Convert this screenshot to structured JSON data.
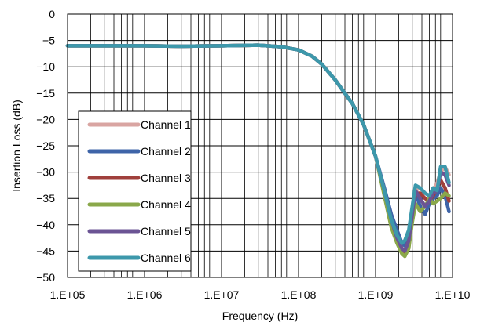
{
  "chart_data": {
    "type": "line",
    "x_scale": "log",
    "xlim": [
      100000,
      10000000000
    ],
    "ylim": [
      -50,
      0
    ],
    "xlabel": "Frequency (Hz)",
    "ylabel": "Insertion Loss (dB)",
    "x_ticks": [
      "1.E+05",
      "1.E+06",
      "1.E+07",
      "1.E+08",
      "1.E+09",
      "1.E+10"
    ],
    "y_ticks": [
      "0",
      "−5",
      "−10",
      "−15",
      "−20",
      "−25",
      "−30",
      "−35",
      "−40",
      "−45",
      "−50"
    ],
    "grid": true,
    "legend_position": "bottom-left",
    "series": [
      {
        "name": "Channel 1",
        "color": "#d9a5a2",
        "x": [
          100000,
          1000000,
          3000000,
          10000000,
          30000000,
          60000000,
          100000000,
          150000000,
          200000000,
          300000000,
          500000000,
          700000000,
          1000000000,
          1300000000,
          1600000000,
          1900000000,
          2200000000,
          2400000000,
          2700000000,
          3000000000,
          3300000000,
          3800000000,
          4400000000,
          5000000000,
          5600000000,
          6300000000,
          7000000000,
          8000000000,
          9000000000
        ],
        "y": [
          -6.0,
          -6.0,
          -6.1,
          -6.0,
          -5.9,
          -6.2,
          -6.8,
          -8.0,
          -9.5,
          -12.5,
          -17.0,
          -21.0,
          -27.0,
          -34.0,
          -39.5,
          -42.0,
          -44.5,
          -45.0,
          -43.5,
          -38.5,
          -33.5,
          -33.0,
          -34.0,
          -34.5,
          -33.5,
          -32.0,
          -30.0,
          -29.0,
          -30.5
        ]
      },
      {
        "name": "Channel 2",
        "color": "#3e64a8",
        "x": [
          100000,
          1000000,
          3000000,
          10000000,
          30000000,
          60000000,
          100000000,
          150000000,
          200000000,
          300000000,
          500000000,
          700000000,
          1000000000,
          1300000000,
          1600000000,
          1900000000,
          2200000000,
          2400000000,
          2700000000,
          3000000000,
          3300000000,
          3800000000,
          4400000000,
          5000000000,
          5600000000,
          6300000000,
          7000000000,
          8000000000,
          9000000000
        ],
        "y": [
          -6.0,
          -6.0,
          -6.1,
          -6.0,
          -5.9,
          -6.2,
          -6.8,
          -8.0,
          -9.5,
          -12.5,
          -17.0,
          -21.0,
          -27.0,
          -33.0,
          -38.0,
          -41.0,
          -43.5,
          -44.0,
          -42.0,
          -37.5,
          -34.0,
          -36.5,
          -38.0,
          -36.0,
          -35.0,
          -34.5,
          -33.0,
          -34.5,
          -37.5
        ]
      },
      {
        "name": "Channel 3",
        "color": "#a0403c",
        "x": [
          100000,
          1000000,
          3000000,
          10000000,
          30000000,
          60000000,
          100000000,
          150000000,
          200000000,
          300000000,
          500000000,
          700000000,
          1000000000,
          1300000000,
          1600000000,
          1900000000,
          2200000000,
          2400000000,
          2700000000,
          3000000000,
          3300000000,
          3800000000,
          4400000000,
          5000000000,
          5600000000,
          6300000000,
          7000000000,
          8000000000,
          9000000000
        ],
        "y": [
          -6.0,
          -6.0,
          -6.1,
          -6.0,
          -5.9,
          -6.2,
          -6.8,
          -8.0,
          -9.5,
          -12.5,
          -17.0,
          -21.0,
          -27.0,
          -34.0,
          -40.0,
          -43.0,
          -45.0,
          -45.5,
          -44.0,
          -39.0,
          -34.0,
          -34.0,
          -35.0,
          -35.5,
          -34.5,
          -33.0,
          -31.5,
          -33.0,
          -35.5
        ]
      },
      {
        "name": "Channel 4",
        "color": "#8aa84a",
        "x": [
          100000,
          1000000,
          3000000,
          10000000,
          30000000,
          60000000,
          100000000,
          150000000,
          200000000,
          300000000,
          500000000,
          700000000,
          1000000000,
          1300000000,
          1600000000,
          1900000000,
          2200000000,
          2400000000,
          2700000000,
          3000000000,
          3300000000,
          3800000000,
          4400000000,
          5000000000,
          5600000000,
          6300000000,
          7000000000,
          8000000000,
          9000000000
        ],
        "y": [
          -6.0,
          -6.0,
          -6.1,
          -6.0,
          -5.9,
          -6.2,
          -6.8,
          -8.0,
          -9.5,
          -12.5,
          -17.0,
          -21.0,
          -27.0,
          -34.5,
          -40.5,
          -43.5,
          -45.5,
          -46.0,
          -44.5,
          -39.5,
          -36.0,
          -37.5,
          -36.5,
          -35.0,
          -36.0,
          -35.5,
          -35.0,
          -34.0,
          -34.5
        ]
      },
      {
        "name": "Channel 5",
        "color": "#6b5494",
        "x": [
          100000,
          1000000,
          3000000,
          10000000,
          30000000,
          60000000,
          100000000,
          150000000,
          200000000,
          300000000,
          500000000,
          700000000,
          1000000000,
          1300000000,
          1600000000,
          1900000000,
          2200000000,
          2400000000,
          2700000000,
          3000000000,
          3300000000,
          3800000000,
          4400000000,
          5000000000,
          5600000000,
          6300000000,
          7000000000,
          8000000000,
          9000000000
        ],
        "y": [
          -6.0,
          -6.0,
          -6.1,
          -6.0,
          -5.9,
          -6.2,
          -6.8,
          -8.0,
          -9.5,
          -12.5,
          -17.0,
          -21.0,
          -27.0,
          -33.5,
          -39.0,
          -42.5,
          -44.5,
          -45.0,
          -43.0,
          -38.0,
          -33.5,
          -35.0,
          -36.5,
          -35.5,
          -34.0,
          -33.5,
          -30.0,
          -30.5,
          -32.5
        ]
      },
      {
        "name": "Channel 6",
        "color": "#3d98ab",
        "x": [
          100000,
          1000000,
          3000000,
          10000000,
          30000000,
          60000000,
          100000000,
          150000000,
          200000000,
          300000000,
          500000000,
          700000000,
          1000000000,
          1300000000,
          1600000000,
          1900000000,
          2200000000,
          2400000000,
          2700000000,
          3000000000,
          3300000000,
          3800000000,
          4400000000,
          5000000000,
          5600000000,
          6300000000,
          7000000000,
          8000000000,
          9000000000
        ],
        "y": [
          -6.0,
          -6.0,
          -6.1,
          -6.0,
          -5.9,
          -6.2,
          -6.8,
          -8.0,
          -9.5,
          -12.5,
          -17.0,
          -21.0,
          -27.0,
          -33.5,
          -39.0,
          -42.0,
          -43.5,
          -43.0,
          -41.0,
          -36.5,
          -32.5,
          -33.0,
          -34.0,
          -34.5,
          -33.0,
          -33.5,
          -29.0,
          -29.0,
          -32.0
        ]
      }
    ]
  }
}
